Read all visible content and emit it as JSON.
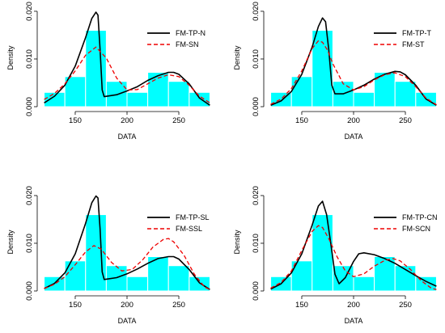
{
  "chart_data": [
    {
      "type": "histogram+density",
      "xlabel": "DATA",
      "ylabel": "Density",
      "xlim": [
        118,
        282
      ],
      "ylim": [
        0,
        0.0205
      ],
      "xticks": [
        150,
        200,
        250
      ],
      "yticks": [
        0.0,
        0.01,
        0.02
      ],
      "ytick_labels": [
        "0.000",
        "0.010",
        "0.020"
      ],
      "bar_color": "#00ffff",
      "bins": [
        {
          "x0": 120,
          "x1": 140,
          "y": 0.003
        },
        {
          "x0": 140,
          "x1": 160,
          "y": 0.0063
        },
        {
          "x0": 160,
          "x1": 180,
          "y": 0.016
        },
        {
          "x0": 180,
          "x1": 200,
          "y": 0.0053
        },
        {
          "x0": 200,
          "x1": 220,
          "y": 0.003
        },
        {
          "x0": 220,
          "x1": 240,
          "y": 0.0072
        },
        {
          "x0": 240,
          "x1": 260,
          "y": 0.0053
        },
        {
          "x0": 260,
          "x1": 280,
          "y": 0.003
        }
      ],
      "legend_position": "top-right",
      "series": [
        {
          "name": "FM-TP-N",
          "color": "#000000",
          "dash": "solid",
          "points": [
            [
              120,
              0.0008
            ],
            [
              130,
              0.0022
            ],
            [
              140,
              0.0045
            ],
            [
              150,
              0.0085
            ],
            [
              160,
              0.0145
            ],
            [
              166,
              0.0185
            ],
            [
              170,
              0.0198
            ],
            [
              172,
              0.0192
            ],
            [
              174,
              0.012
            ],
            [
              176,
              0.0035
            ],
            [
              178,
              0.0021
            ],
            [
              190,
              0.0025
            ],
            [
              200,
              0.0033
            ],
            [
              210,
              0.0042
            ],
            [
              220,
              0.0055
            ],
            [
              230,
              0.0065
            ],
            [
              240,
              0.0072
            ],
            [
              245,
              0.0072
            ],
            [
              250,
              0.0068
            ],
            [
              260,
              0.0048
            ],
            [
              270,
              0.0018
            ],
            [
              280,
              0.0003
            ]
          ]
        },
        {
          "name": "FM-SN",
          "color": "#ee0000",
          "dash": "dashed",
          "points": [
            [
              120,
              0.0015
            ],
            [
              130,
              0.0028
            ],
            [
              140,
              0.0048
            ],
            [
              150,
              0.0075
            ],
            [
              160,
              0.0108
            ],
            [
              170,
              0.0125
            ],
            [
              180,
              0.0102
            ],
            [
              190,
              0.006
            ],
            [
              200,
              0.0035
            ],
            [
              210,
              0.0036
            ],
            [
              220,
              0.0048
            ],
            [
              230,
              0.006
            ],
            [
              240,
              0.0067
            ],
            [
              250,
              0.0063
            ],
            [
              260,
              0.0045
            ],
            [
              270,
              0.0022
            ],
            [
              280,
              0.0008
            ]
          ]
        }
      ]
    },
    {
      "type": "histogram+density",
      "xlabel": "DATA",
      "ylabel": "Density",
      "xlim": [
        118,
        282
      ],
      "ylim": [
        0,
        0.0205
      ],
      "xticks": [
        150,
        200,
        250
      ],
      "yticks": [
        0.0,
        0.01,
        0.02
      ],
      "ytick_labels": [
        "0.000",
        "0.010",
        "0.020"
      ],
      "bar_color": "#00ffff",
      "bins": [
        {
          "x0": 120,
          "x1": 140,
          "y": 0.003
        },
        {
          "x0": 140,
          "x1": 160,
          "y": 0.0063
        },
        {
          "x0": 160,
          "x1": 180,
          "y": 0.016
        },
        {
          "x0": 180,
          "x1": 200,
          "y": 0.0053
        },
        {
          "x0": 200,
          "x1": 220,
          "y": 0.003
        },
        {
          "x0": 220,
          "x1": 240,
          "y": 0.0072
        },
        {
          "x0": 240,
          "x1": 260,
          "y": 0.0053
        },
        {
          "x0": 260,
          "x1": 280,
          "y": 0.003
        }
      ],
      "legend_position": "top-right",
      "series": [
        {
          "name": "FM-TP-T",
          "color": "#000000",
          "dash": "solid",
          "points": [
            [
              120,
              0.0003
            ],
            [
              130,
              0.0012
            ],
            [
              140,
              0.0032
            ],
            [
              150,
              0.0068
            ],
            [
              160,
              0.0125
            ],
            [
              166,
              0.0168
            ],
            [
              170,
              0.0186
            ],
            [
              173,
              0.0178
            ],
            [
              176,
              0.012
            ],
            [
              179,
              0.0045
            ],
            [
              182,
              0.0027
            ],
            [
              190,
              0.0027
            ],
            [
              200,
              0.0035
            ],
            [
              210,
              0.0045
            ],
            [
              220,
              0.0058
            ],
            [
              230,
              0.0068
            ],
            [
              240,
              0.0074
            ],
            [
              245,
              0.0073
            ],
            [
              250,
              0.0067
            ],
            [
              260,
              0.0045
            ],
            [
              270,
              0.0016
            ],
            [
              280,
              0.0003
            ]
          ]
        },
        {
          "name": "FM-ST",
          "color": "#ee0000",
          "dash": "dashed",
          "points": [
            [
              120,
              0.0005
            ],
            [
              130,
              0.0016
            ],
            [
              140,
              0.0038
            ],
            [
              150,
              0.0075
            ],
            [
              160,
              0.0122
            ],
            [
              166,
              0.0138
            ],
            [
              170,
              0.0135
            ],
            [
              175,
              0.0118
            ],
            [
              180,
              0.009
            ],
            [
              190,
              0.0048
            ],
            [
              200,
              0.0035
            ],
            [
              210,
              0.0042
            ],
            [
              220,
              0.0056
            ],
            [
              230,
              0.0067
            ],
            [
              240,
              0.0071
            ],
            [
              250,
              0.0063
            ],
            [
              260,
              0.0042
            ],
            [
              270,
              0.0018
            ],
            [
              280,
              0.0004
            ]
          ]
        }
      ]
    },
    {
      "type": "histogram+density",
      "xlabel": "DATA",
      "ylabel": "Density",
      "xlim": [
        118,
        282
      ],
      "ylim": [
        0,
        0.0205
      ],
      "xticks": [
        150,
        200,
        250
      ],
      "yticks": [
        0.0,
        0.01,
        0.02
      ],
      "ytick_labels": [
        "0.000",
        "0.010",
        "0.020"
      ],
      "bar_color": "#00ffff",
      "bins": [
        {
          "x0": 120,
          "x1": 140,
          "y": 0.003
        },
        {
          "x0": 140,
          "x1": 160,
          "y": 0.0063
        },
        {
          "x0": 160,
          "x1": 180,
          "y": 0.016
        },
        {
          "x0": 180,
          "x1": 200,
          "y": 0.0053
        },
        {
          "x0": 200,
          "x1": 220,
          "y": 0.003
        },
        {
          "x0": 220,
          "x1": 240,
          "y": 0.0072
        },
        {
          "x0": 240,
          "x1": 260,
          "y": 0.0053
        },
        {
          "x0": 260,
          "x1": 280,
          "y": 0.003
        }
      ],
      "legend_position": "top-right",
      "series": [
        {
          "name": "FM-TP-SL",
          "color": "#000000",
          "dash": "solid",
          "points": [
            [
              120,
              0.0005
            ],
            [
              130,
              0.0016
            ],
            [
              140,
              0.0038
            ],
            [
              150,
              0.0078
            ],
            [
              160,
              0.0142
            ],
            [
              166,
              0.0185
            ],
            [
              170,
              0.0199
            ],
            [
              172,
              0.0195
            ],
            [
              174,
              0.013
            ],
            [
              176,
              0.004
            ],
            [
              178,
              0.0024
            ],
            [
              190,
              0.0028
            ],
            [
              200,
              0.0036
            ],
            [
              210,
              0.0046
            ],
            [
              220,
              0.0058
            ],
            [
              230,
              0.0068
            ],
            [
              240,
              0.0072
            ],
            [
              245,
              0.0072
            ],
            [
              250,
              0.0067
            ],
            [
              260,
              0.0045
            ],
            [
              270,
              0.0017
            ],
            [
              280,
              0.0003
            ]
          ]
        },
        {
          "name": "FM-SSL",
          "color": "#ee0000",
          "dash": "dashed",
          "points": [
            [
              120,
              0.0005
            ],
            [
              130,
              0.0014
            ],
            [
              140,
              0.003
            ],
            [
              150,
              0.0055
            ],
            [
              160,
              0.0082
            ],
            [
              168,
              0.0095
            ],
            [
              175,
              0.0088
            ],
            [
              185,
              0.006
            ],
            [
              195,
              0.0042
            ],
            [
              205,
              0.0045
            ],
            [
              215,
              0.0065
            ],
            [
              225,
              0.0092
            ],
            [
              235,
              0.0108
            ],
            [
              240,
              0.011
            ],
            [
              245,
              0.0103
            ],
            [
              255,
              0.0075
            ],
            [
              265,
              0.0035
            ],
            [
              275,
              0.0008
            ],
            [
              280,
              0.0003
            ]
          ]
        }
      ]
    },
    {
      "type": "histogram+density",
      "xlabel": "DATA",
      "ylabel": "Density",
      "xlim": [
        118,
        282
      ],
      "ylim": [
        0,
        0.0205
      ],
      "xticks": [
        150,
        200,
        250
      ],
      "yticks": [
        0.0,
        0.01,
        0.02
      ],
      "ytick_labels": [
        "0.000",
        "0.010",
        "0.020"
      ],
      "bar_color": "#00ffff",
      "bins": [
        {
          "x0": 120,
          "x1": 140,
          "y": 0.003
        },
        {
          "x0": 140,
          "x1": 160,
          "y": 0.0063
        },
        {
          "x0": 160,
          "x1": 180,
          "y": 0.016
        },
        {
          "x0": 180,
          "x1": 200,
          "y": 0.0053
        },
        {
          "x0": 200,
          "x1": 220,
          "y": 0.003
        },
        {
          "x0": 220,
          "x1": 240,
          "y": 0.0072
        },
        {
          "x0": 240,
          "x1": 260,
          "y": 0.0053
        },
        {
          "x0": 260,
          "x1": 280,
          "y": 0.003
        }
      ],
      "legend_position": "top-right",
      "series": [
        {
          "name": "FM-TP-CN",
          "color": "#000000",
          "dash": "solid",
          "points": [
            [
              120,
              0.0004
            ],
            [
              130,
              0.0015
            ],
            [
              140,
              0.0038
            ],
            [
              150,
              0.0078
            ],
            [
              160,
              0.0138
            ],
            [
              166,
              0.0178
            ],
            [
              170,
              0.0188
            ],
            [
              174,
              0.016
            ],
            [
              178,
              0.01
            ],
            [
              182,
              0.0035
            ],
            [
              186,
              0.0015
            ],
            [
              192,
              0.0028
            ],
            [
              200,
              0.0062
            ],
            [
              205,
              0.0078
            ],
            [
              210,
              0.008
            ],
            [
              220,
              0.0076
            ],
            [
              230,
              0.0068
            ],
            [
              240,
              0.0058
            ],
            [
              250,
              0.0045
            ],
            [
              260,
              0.0032
            ],
            [
              270,
              0.002
            ],
            [
              280,
              0.001
            ]
          ]
        },
        {
          "name": "FM-SCN",
          "color": "#ee0000",
          "dash": "dashed",
          "points": [
            [
              120,
              0.0006
            ],
            [
              130,
              0.0018
            ],
            [
              140,
              0.0042
            ],
            [
              150,
              0.0085
            ],
            [
              160,
              0.0125
            ],
            [
              166,
              0.0137
            ],
            [
              170,
              0.0133
            ],
            [
              176,
              0.011
            ],
            [
              184,
              0.0072
            ],
            [
              192,
              0.0042
            ],
            [
              200,
              0.003
            ],
            [
              210,
              0.0036
            ],
            [
              220,
              0.0052
            ],
            [
              230,
              0.0064
            ],
            [
              238,
              0.0068
            ],
            [
              245,
              0.0063
            ],
            [
              255,
              0.0045
            ],
            [
              265,
              0.0022
            ],
            [
              275,
              0.0006
            ],
            [
              280,
              0.0003
            ]
          ]
        }
      ]
    }
  ]
}
